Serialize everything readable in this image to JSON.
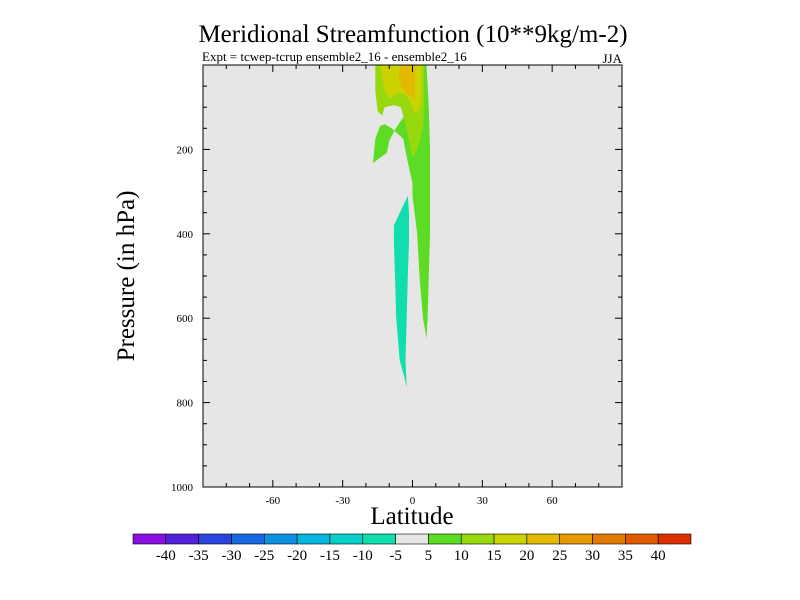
{
  "chart_data": {
    "type": "contour",
    "title": "Meridional Streamfunction (10**9kg/m-2)",
    "subtitle_left": "Expt = tcwep-tcrup ensemble2_16 - ensemble2_16",
    "subtitle_right": "JJA",
    "xlabel": "Latitude",
    "ylabel": "Pressure (in hPa)",
    "xlim": [
      -90,
      90
    ],
    "ylim": [
      0,
      1000
    ],
    "y_inverted": true,
    "x_ticks": [
      -60,
      -30,
      0,
      30,
      60
    ],
    "y_ticks": [
      200,
      400,
      600,
      800,
      1000
    ],
    "background_color": "#e6e6e6",
    "colorbar": {
      "labels": [
        "-40",
        "-35",
        "-30",
        "-25",
        "-20",
        "-15",
        "-10",
        "-5",
        "5",
        "10",
        "15",
        "20",
        "25",
        "30",
        "35",
        "40"
      ],
      "colors": [
        "#8a10e0",
        "#5222d8",
        "#2a44de",
        "#1768e0",
        "#0c92e0",
        "#06b6de",
        "#08cfc8",
        "#10deac",
        "#e6e6e6",
        "#5cdc24",
        "#98d80e",
        "#cad200",
        "#e2b800",
        "#e49a00",
        "#e27a00",
        "#e05a00",
        "#dc3000"
      ]
    },
    "regions": [
      {
        "name": "positive-5-10",
        "value": 5,
        "color": "#5cdc24",
        "points": [
          [
            -16,
            0
          ],
          [
            6,
            0
          ],
          [
            7,
            100
          ],
          [
            7.5,
            200
          ],
          [
            7.5,
            300
          ],
          [
            7.5,
            400
          ],
          [
            7,
            500
          ],
          [
            6.5,
            600
          ],
          [
            6,
            648
          ],
          [
            4.5,
            600
          ],
          [
            3,
            500
          ],
          [
            2,
            400
          ],
          [
            0,
            310
          ],
          [
            0,
            280
          ],
          [
            -2,
            230
          ],
          [
            -4,
            175
          ],
          [
            -9,
            150
          ],
          [
            -12,
            140
          ],
          [
            -14,
            145
          ],
          [
            -16,
            175
          ],
          [
            -17,
            233
          ],
          [
            -14,
            220
          ],
          [
            -11,
            208
          ],
          [
            -10,
            180
          ],
          [
            -8,
            158
          ],
          [
            -6,
            140
          ],
          [
            -4,
            125
          ],
          [
            -3,
            110
          ],
          [
            -5,
            95
          ],
          [
            -8,
            85
          ],
          [
            -12,
            80
          ],
          [
            -15,
            55
          ]
        ]
      },
      {
        "name": "positive-10-15",
        "value": 10,
        "color": "#98d80e",
        "points": [
          [
            -16,
            0
          ],
          [
            5,
            0
          ],
          [
            5,
            100
          ],
          [
            4.5,
            150
          ],
          [
            3,
            180
          ],
          [
            2,
            200
          ],
          [
            0,
            220
          ],
          [
            -1.5,
            180
          ],
          [
            -3,
            140
          ],
          [
            -4,
            120
          ],
          [
            -5,
            100
          ],
          [
            -8,
            95
          ],
          [
            -12,
            100
          ],
          [
            -13,
            120
          ],
          [
            -15,
            110
          ],
          [
            -16,
            60
          ]
        ]
      },
      {
        "name": "positive-15-20",
        "value": 15,
        "color": "#cad200",
        "points": [
          [
            -14,
            0
          ],
          [
            4,
            0
          ],
          [
            4,
            80
          ],
          [
            3,
            105
          ],
          [
            1,
            115
          ],
          [
            -1,
            85
          ],
          [
            -3,
            70
          ],
          [
            -6,
            65
          ],
          [
            -10,
            80
          ],
          [
            -12,
            60
          ]
        ]
      },
      {
        "name": "positive-20-25",
        "value": 20,
        "color": "#e2b800",
        "points": [
          [
            -5,
            0
          ],
          [
            1,
            0
          ],
          [
            1,
            80
          ],
          [
            -2,
            70
          ],
          [
            -5,
            50
          ],
          [
            -6,
            25
          ]
        ]
      },
      {
        "name": "negative-10-5",
        "value": -5,
        "color": "#10deac",
        "points": [
          [
            -8,
            380
          ],
          [
            -2,
            310
          ],
          [
            -1.5,
            350
          ],
          [
            -1.5,
            420
          ],
          [
            -2,
            500
          ],
          [
            -2.5,
            600
          ],
          [
            -3,
            700
          ],
          [
            -2.5,
            765
          ],
          [
            -3.5,
            740
          ],
          [
            -5.5,
            700
          ],
          [
            -7,
            600
          ],
          [
            -7.5,
            500
          ],
          [
            -8,
            420
          ]
        ]
      }
    ]
  }
}
